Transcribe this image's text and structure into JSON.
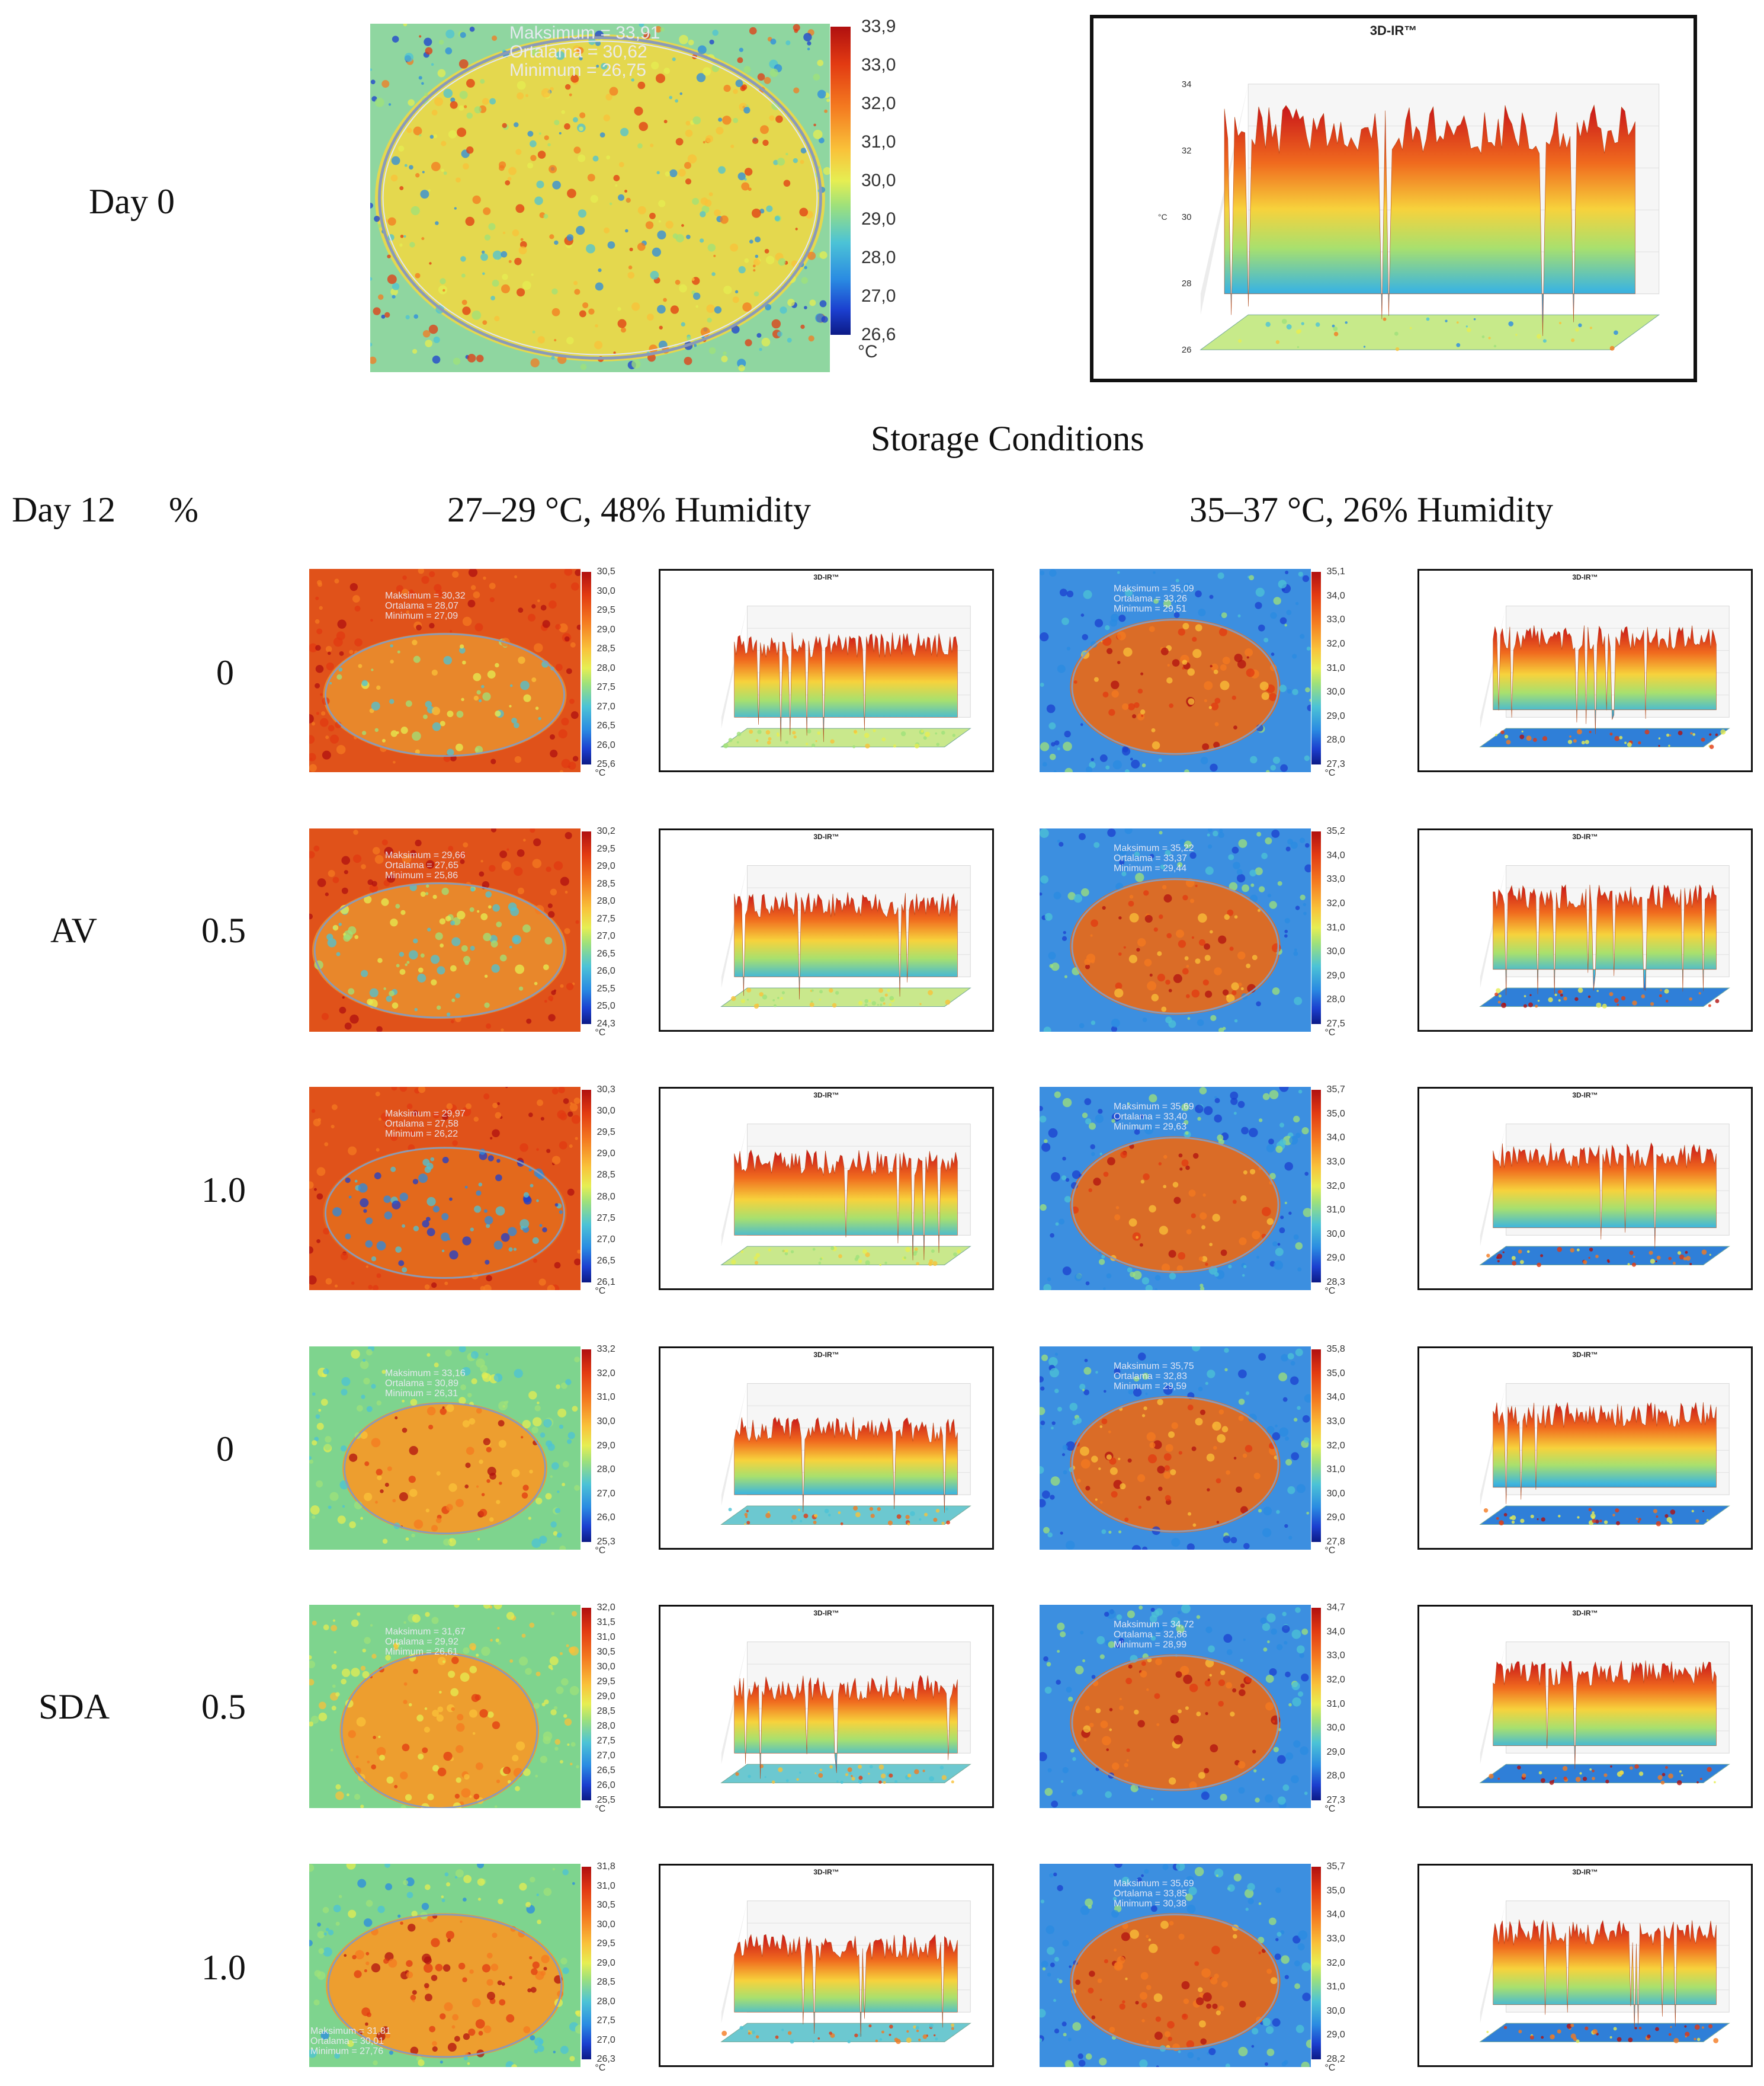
{
  "labels": {
    "day0": "Day 0",
    "storage_conditions": "Storage Conditions",
    "day12": "Day 12",
    "percent": "%",
    "cond1": "27–29 °C, 48% Humidity",
    "cond2": "35–37 °C, 26% Humidity",
    "group_av": "AV",
    "group_sda": "SDA"
  },
  "ir_title": "3D-IR™",
  "day0": {
    "stats": [
      "Maksimum = 33,91",
      "Ortalama = 30,62",
      "Minimum = 26,75"
    ],
    "ticks": [
      "33,9",
      "33,0",
      "32,0",
      "31,0",
      "30,0",
      "29,0",
      "28,0",
      "27,0",
      "26,6"
    ],
    "unit": "°C",
    "plot_ticks": [
      "34",
      "32",
      "30",
      "28",
      "26"
    ],
    "plot_unit": "°C"
  },
  "rows": [
    {
      "conc": "0",
      "left": {
        "stats": [
          "Maksimum = 30,32",
          "Ortalama = 28,07",
          "Minimum = 27,09"
        ],
        "ticks": [
          "30,5",
          "30,0",
          "29,5",
          "29,0",
          "28,5",
          "28,0",
          "27,5",
          "27,0",
          "26,5",
          "26,0",
          "25,6"
        ],
        "unit": "°C"
      },
      "right": {
        "stats": [
          "Maksimum = 35,09",
          "Ortalama = 33,26",
          "Minimum = 29,51"
        ],
        "ticks": [
          "35,1",
          "34,0",
          "33,0",
          "32,0",
          "31,0",
          "30,0",
          "29,0",
          "28,0",
          "27,3"
        ],
        "unit": "°C"
      }
    },
    {
      "conc": "0.5",
      "left": {
        "stats": [
          "Maksimum = 29,66",
          "Ortalama = 27,65",
          "Minimum = 25,86"
        ],
        "ticks": [
          "30,2",
          "29,5",
          "29,0",
          "28,5",
          "28,0",
          "27,5",
          "27,0",
          "26,5",
          "26,0",
          "25,5",
          "25,0",
          "24,3"
        ],
        "unit": "°C"
      },
      "right": {
        "stats": [
          "Maksimum = 35,22",
          "Ortalama = 33,37",
          "Minimum = 29,44"
        ],
        "ticks": [
          "35,2",
          "34,0",
          "33,0",
          "32,0",
          "31,0",
          "30,0",
          "29,0",
          "28,0",
          "27,5"
        ],
        "unit": "°C"
      }
    },
    {
      "conc": "1.0",
      "left": {
        "stats": [
          "Maksimum = 29,97",
          "Ortalama = 27,58",
          "Minimum = 26,22"
        ],
        "ticks": [
          "30,3",
          "30,0",
          "29,5",
          "29,0",
          "28,5",
          "28,0",
          "27,5",
          "27,0",
          "26,5",
          "26,1"
        ],
        "unit": "°C"
      },
      "right": {
        "stats": [
          "Maksimum = 35,69",
          "Ortalama = 33,40",
          "Minimum = 29,63"
        ],
        "ticks": [
          "35,7",
          "35,0",
          "34,0",
          "33,0",
          "32,0",
          "31,0",
          "30,0",
          "29,0",
          "28,3"
        ],
        "unit": "°C"
      }
    },
    {
      "conc": "0",
      "left": {
        "stats": [
          "Maksimum = 33,16",
          "Ortalama = 30,89",
          "Minimum = 26,31"
        ],
        "ticks": [
          "33,2",
          "32,0",
          "31,0",
          "30,0",
          "29,0",
          "28,0",
          "27,0",
          "26,0",
          "25,3"
        ],
        "unit": "°C"
      },
      "right": {
        "stats": [
          "Maksimum = 35,75",
          "Ortalama = 32,83",
          "Minimum = 29,59"
        ],
        "ticks": [
          "35,8",
          "35,0",
          "34,0",
          "33,0",
          "32,0",
          "31,0",
          "30,0",
          "29,0",
          "27,8"
        ],
        "unit": "°C"
      }
    },
    {
      "conc": "0.5",
      "left": {
        "stats": [
          "Maksimum = 31,67",
          "Ortalama = 29,92",
          "Minimum = 26,61"
        ],
        "ticks": [
          "32,0",
          "31,5",
          "31,0",
          "30,5",
          "30,0",
          "29,5",
          "29,0",
          "28,5",
          "28,0",
          "27,5",
          "27,0",
          "26,5",
          "26,0",
          "25,5"
        ],
        "unit": "°C"
      },
      "right": {
        "stats": [
          "Maksimum = 34,72",
          "Ortalama = 32,86",
          "Minimum = 28,99"
        ],
        "ticks": [
          "34,7",
          "34,0",
          "33,0",
          "32,0",
          "31,0",
          "30,0",
          "29,0",
          "28,0",
          "27,3"
        ],
        "unit": "°C"
      }
    },
    {
      "conc": "1.0",
      "left": {
        "stats": [
          "Maksimum = 31,81",
          "Ortalama = 30,01",
          "Minimum = 27,76"
        ],
        "ticks": [
          "31,8",
          "31,0",
          "30,5",
          "30,0",
          "29,5",
          "29,0",
          "28,5",
          "28,0",
          "27,5",
          "27,0",
          "26,3"
        ],
        "unit": "°C"
      },
      "right": {
        "stats": [
          "Maksimum = 35,69",
          "Ortalama = 33,85",
          "Minimum = 30,38"
        ],
        "ticks": [
          "35,7",
          "35,0",
          "34,0",
          "33,0",
          "32,0",
          "31,0",
          "30,0",
          "29,0",
          "28,2"
        ],
        "unit": "°C"
      }
    }
  ]
}
